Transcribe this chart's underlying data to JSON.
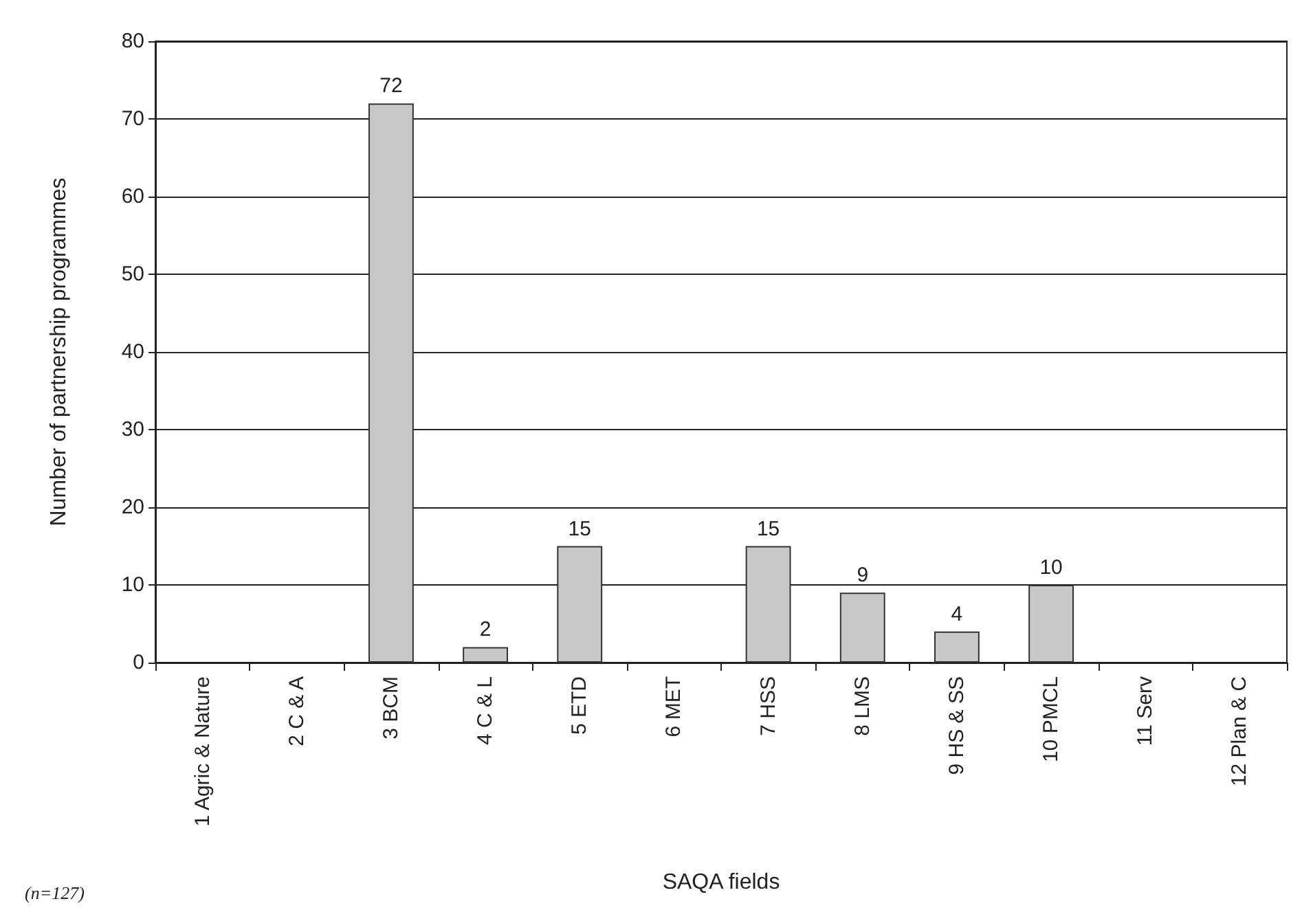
{
  "chart_data": {
    "type": "bar",
    "xlabel": "SAQA fields",
    "ylabel": "Number of partnership programmes",
    "categories": [
      "1 Agric & Nature",
      "2 C & A",
      "3 BCM",
      "4 C & L",
      "5 ETD",
      "6 MET",
      "7 HSS",
      "8 LMS",
      "9 HS & SS",
      "10 PMCL",
      "11 Serv",
      "12 Plan & C"
    ],
    "values": [
      0,
      0,
      72,
      2,
      15,
      0,
      15,
      9,
      4,
      10,
      0,
      0
    ],
    "value_labels": [
      null,
      null,
      "72",
      "2",
      "15",
      null,
      "15",
      "9",
      "4",
      "10",
      null,
      null
    ],
    "color": "#c8c8c8",
    "ylim": [
      0,
      80
    ],
    "yticks": [
      0,
      10,
      20,
      30,
      40,
      50,
      60,
      70,
      80
    ],
    "grid": "y",
    "annotations": [
      "(n=127)"
    ]
  }
}
